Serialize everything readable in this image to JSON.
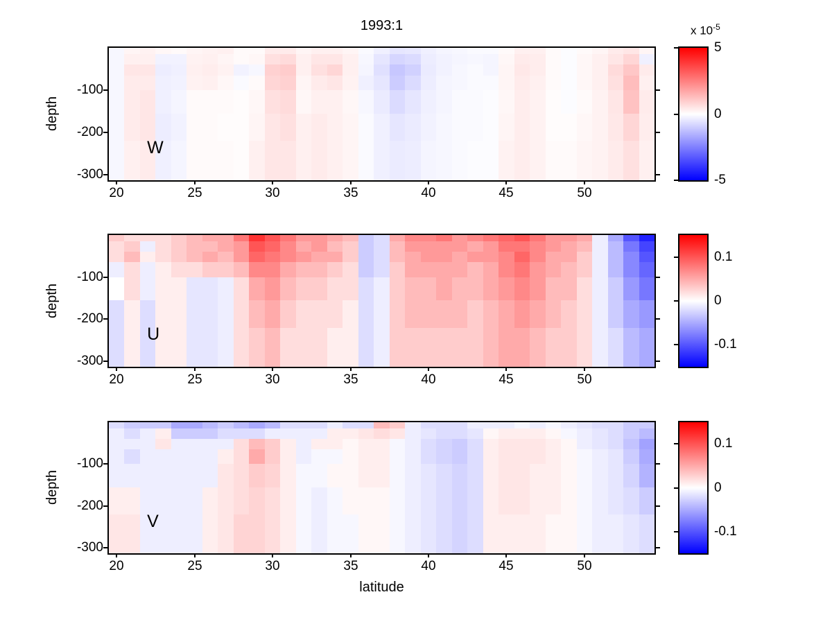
{
  "figure": {
    "title": "1993:1",
    "xlabel": "latitude",
    "ylabel": "depth",
    "background": "#ffffff"
  },
  "colors": {
    "max_positive": "#ff0000",
    "zero": "#ffffff",
    "max_negative": "#0000ff",
    "axis": "#000000",
    "text": "#000000"
  },
  "chart_data": [
    {
      "type": "heatmap",
      "panel_label": "W",
      "x_ticks": [
        20,
        25,
        30,
        35,
        40,
        45,
        50
      ],
      "y_ticks": [
        -100,
        -200,
        -300
      ],
      "lat_range": [
        19.5,
        54.5
      ],
      "depth_edges": [
        0,
        15,
        40,
        65,
        100,
        155,
        220,
        313
      ],
      "clim": [
        -5,
        5
      ],
      "value_units": "1e-5",
      "colorbar_exponent": {
        "base": "x 10",
        "power": "-5"
      },
      "colorbar_ticks": [
        {
          "label": "5",
          "value": 5
        },
        {
          "label": "0",
          "value": 0
        },
        {
          "label": "-5",
          "value": -5
        }
      ],
      "values": [
        [
          -0.15,
          0.2,
          0.25,
          0.15,
          0.1,
          0.2,
          0.25,
          0.3,
          0.1,
          0.1,
          0.4,
          0.4,
          0.2,
          0.3,
          0.3,
          0.2,
          -0.1,
          -0.3,
          -0.5,
          -0.45,
          -0.3,
          -0.2,
          -0.15,
          -0.1,
          -0.1,
          0.1,
          0.3,
          0.3,
          0.1,
          -0.05,
          0.1,
          0.2,
          0.4,
          0.5,
          0.2
        ],
        [
          -0.15,
          0.3,
          0.3,
          -0.25,
          -0.25,
          0.25,
          0.3,
          0.2,
          0.1,
          0.15,
          0.6,
          0.7,
          0.3,
          0.5,
          0.5,
          0.3,
          -0.15,
          -0.5,
          -0.8,
          -0.7,
          -0.35,
          -0.25,
          -0.2,
          -0.15,
          -0.2,
          0.15,
          0.4,
          0.35,
          0.1,
          -0.05,
          0.15,
          0.3,
          0.5,
          0.8,
          -0.3
        ],
        [
          -0.15,
          0.5,
          0.5,
          -0.35,
          -0.3,
          0.3,
          0.35,
          0.25,
          -0.25,
          -0.15,
          0.9,
          1.0,
          0.3,
          0.6,
          0.8,
          0.3,
          -0.2,
          -0.6,
          -1.1,
          -0.9,
          -0.4,
          -0.25,
          -0.15,
          -0.1,
          -0.2,
          0.2,
          0.45,
          0.35,
          0.1,
          -0.05,
          0.15,
          0.3,
          0.7,
          1.1,
          0.4
        ],
        [
          -0.15,
          0.4,
          0.4,
          -0.3,
          -0.25,
          0.25,
          0.3,
          0.15,
          -0.1,
          0.1,
          0.8,
          0.9,
          0.2,
          0.4,
          0.5,
          0.25,
          -0.3,
          -0.5,
          -1.0,
          -0.7,
          -0.35,
          -0.2,
          -0.15,
          -0.1,
          -0.1,
          0.2,
          0.4,
          0.3,
          0.1,
          -0.05,
          0.15,
          0.3,
          0.6,
          1.3,
          0.3
        ],
        [
          -0.15,
          0.4,
          0.5,
          -0.3,
          -0.2,
          0.1,
          0.1,
          0.1,
          0.05,
          0.15,
          0.6,
          0.7,
          0.15,
          0.3,
          0.3,
          0.15,
          -0.15,
          -0.4,
          -0.7,
          -0.5,
          -0.3,
          -0.2,
          -0.1,
          -0.1,
          -0.05,
          0.15,
          0.35,
          0.25,
          0.05,
          -0.05,
          0.1,
          0.25,
          0.5,
          1.2,
          0.4
        ],
        [
          -0.15,
          0.4,
          0.5,
          -0.35,
          -0.25,
          0.1,
          0.1,
          0.05,
          0.05,
          0.2,
          0.5,
          0.6,
          0.3,
          0.4,
          0.3,
          0.2,
          -0.1,
          -0.3,
          -0.5,
          -0.4,
          -0.25,
          -0.15,
          -0.1,
          -0.1,
          -0.05,
          0.2,
          0.35,
          0.25,
          0.05,
          0.05,
          0.15,
          0.25,
          0.45,
          0.8,
          0.35
        ],
        [
          -0.15,
          0.3,
          0.4,
          -0.3,
          -0.2,
          0.1,
          0.1,
          0.1,
          0.05,
          0.3,
          0.5,
          0.5,
          0.3,
          0.4,
          0.3,
          0.2,
          -0.1,
          -0.3,
          -0.4,
          -0.35,
          -0.2,
          -0.15,
          -0.1,
          -0.05,
          -0.05,
          0.25,
          0.35,
          0.25,
          0.1,
          0.1,
          0.2,
          0.25,
          0.4,
          0.6,
          0.3
        ]
      ]
    },
    {
      "type": "heatmap",
      "panel_label": "U",
      "x_ticks": [
        20,
        25,
        30,
        35,
        40,
        45,
        50
      ],
      "y_ticks": [
        -100,
        -200,
        -300
      ],
      "lat_range": [
        19.5,
        54.5
      ],
      "depth_edges": [
        0,
        15,
        40,
        65,
        100,
        155,
        220,
        313
      ],
      "clim": [
        -0.15,
        0.15
      ],
      "value_units": "1",
      "colorbar_ticks": [
        {
          "label": "0.1",
          "value": 0.1
        },
        {
          "label": "0",
          "value": 0
        },
        {
          "label": "-0.1",
          "value": -0.1
        }
      ],
      "values": [
        [
          0.03,
          0.02,
          0.02,
          0.02,
          0.03,
          0.04,
          0.05,
          0.05,
          0.08,
          0.12,
          0.1,
          0.08,
          0.06,
          0.06,
          0.05,
          0.04,
          -0.03,
          -0.02,
          0.05,
          0.07,
          0.07,
          0.08,
          0.06,
          0.07,
          0.08,
          0.09,
          0.1,
          0.08,
          0.06,
          0.06,
          0.05,
          -0.01,
          -0.05,
          -0.1,
          -0.13
        ],
        [
          0.02,
          0.03,
          -0.01,
          0.02,
          0.03,
          0.04,
          0.04,
          0.05,
          0.06,
          0.1,
          0.09,
          0.07,
          0.05,
          0.06,
          0.04,
          0.03,
          -0.03,
          -0.02,
          0.04,
          0.06,
          0.06,
          0.06,
          0.06,
          0.05,
          0.06,
          0.08,
          0.08,
          0.07,
          0.06,
          0.05,
          0.04,
          -0.01,
          -0.04,
          -0.08,
          -0.11
        ],
        [
          0.02,
          0.04,
          0.01,
          0.02,
          0.03,
          0.04,
          0.05,
          0.04,
          0.06,
          0.09,
          0.08,
          0.07,
          0.06,
          0.05,
          0.05,
          0.03,
          -0.03,
          -0.02,
          0.04,
          0.05,
          0.06,
          0.06,
          0.05,
          0.06,
          0.06,
          0.07,
          0.09,
          0.07,
          0.05,
          0.05,
          0.03,
          -0.01,
          -0.04,
          -0.07,
          -0.1
        ],
        [
          -0.01,
          0.02,
          -0.01,
          0.01,
          0.02,
          0.02,
          0.03,
          0.03,
          0.04,
          0.07,
          0.07,
          0.05,
          0.04,
          0.04,
          0.03,
          0.02,
          -0.03,
          -0.02,
          0.03,
          0.05,
          0.05,
          0.05,
          0.05,
          0.04,
          0.05,
          0.07,
          0.08,
          0.06,
          0.05,
          0.04,
          0.03,
          -0.01,
          -0.04,
          -0.07,
          -0.09
        ],
        [
          0.0,
          0.02,
          -0.01,
          0.01,
          0.01,
          -0.015,
          -0.015,
          -0.01,
          0.02,
          0.05,
          0.06,
          0.04,
          0.03,
          0.03,
          0.02,
          0.02,
          -0.02,
          -0.01,
          0.03,
          0.04,
          0.04,
          0.05,
          0.04,
          0.04,
          0.05,
          0.06,
          0.07,
          0.06,
          0.04,
          0.04,
          0.02,
          -0.01,
          -0.03,
          -0.06,
          -0.08
        ],
        [
          -0.02,
          0.01,
          -0.02,
          0.01,
          0.01,
          -0.015,
          -0.015,
          -0.01,
          0.02,
          0.04,
          0.05,
          0.03,
          0.02,
          0.02,
          0.02,
          0.01,
          -0.02,
          -0.01,
          0.03,
          0.04,
          0.04,
          0.04,
          0.04,
          0.03,
          0.04,
          0.05,
          0.06,
          0.05,
          0.04,
          0.03,
          0.02,
          -0.01,
          -0.03,
          -0.05,
          -0.06
        ],
        [
          -0.02,
          0.01,
          -0.02,
          0.01,
          0.01,
          -0.015,
          -0.015,
          -0.01,
          0.02,
          0.03,
          0.04,
          0.02,
          0.02,
          0.02,
          0.01,
          0.01,
          -0.02,
          -0.01,
          0.03,
          0.03,
          0.03,
          0.03,
          0.03,
          0.03,
          0.04,
          0.05,
          0.05,
          0.04,
          0.03,
          0.03,
          0.02,
          -0.01,
          -0.02,
          -0.04,
          -0.05
        ]
      ]
    },
    {
      "type": "heatmap",
      "panel_label": "V",
      "x_ticks": [
        20,
        25,
        30,
        35,
        40,
        45,
        50
      ],
      "y_ticks": [
        -100,
        -200,
        -300
      ],
      "lat_range": [
        19.5,
        54.5
      ],
      "depth_edges": [
        0,
        15,
        40,
        65,
        100,
        155,
        220,
        313
      ],
      "clim": [
        -0.15,
        0.15
      ],
      "value_units": "1",
      "colorbar_ticks": [
        {
          "label": "0.1",
          "value": 0.1
        },
        {
          "label": "0",
          "value": 0
        },
        {
          "label": "-0.1",
          "value": -0.1
        }
      ],
      "values": [
        [
          -0.02,
          -0.03,
          -0.03,
          -0.03,
          -0.05,
          -0.05,
          -0.04,
          -0.03,
          -0.04,
          -0.05,
          -0.04,
          -0.02,
          -0.02,
          -0.02,
          -0.01,
          -0.02,
          -0.02,
          0.04,
          0.03,
          -0.01,
          -0.02,
          -0.02,
          -0.02,
          -0.01,
          -0.01,
          -0.01,
          -0.005,
          -0.01,
          -0.005,
          -0.01,
          -0.015,
          -0.02,
          -0.02,
          -0.03,
          -0.03
        ],
        [
          -0.01,
          -0.02,
          -0.01,
          0.01,
          -0.03,
          -0.03,
          -0.03,
          -0.02,
          -0.02,
          -0.02,
          -0.01,
          -0.01,
          -0.01,
          -0.01,
          0.01,
          0.01,
          0.015,
          0.02,
          0.015,
          -0.01,
          -0.015,
          -0.02,
          -0.02,
          -0.015,
          0.005,
          0.01,
          0.01,
          0.01,
          0.005,
          -0.005,
          -0.01,
          -0.015,
          -0.02,
          -0.03,
          -0.04
        ],
        [
          -0.01,
          -0.01,
          -0.01,
          0.015,
          -0.01,
          -0.01,
          -0.01,
          -0.01,
          0.02,
          0.04,
          0.03,
          0.01,
          -0.01,
          0.01,
          0.01,
          0.005,
          0.01,
          0.01,
          -0.005,
          -0.01,
          -0.02,
          -0.025,
          -0.03,
          -0.02,
          0.01,
          0.015,
          0.015,
          0.015,
          0.01,
          0.005,
          -0.01,
          -0.015,
          -0.02,
          -0.035,
          -0.055
        ],
        [
          -0.01,
          -0.02,
          -0.01,
          -0.01,
          -0.01,
          -0.01,
          -0.01,
          0.01,
          0.02,
          0.05,
          0.03,
          0.01,
          -0.01,
          -0.005,
          -0.005,
          0.005,
          0.01,
          0.01,
          -0.005,
          -0.01,
          -0.02,
          -0.025,
          -0.03,
          -0.02,
          0.01,
          0.015,
          0.015,
          0.015,
          0.01,
          0.005,
          -0.005,
          -0.01,
          -0.015,
          -0.03,
          -0.05
        ],
        [
          -0.01,
          -0.01,
          -0.01,
          -0.01,
          -0.01,
          -0.01,
          -0.01,
          0.015,
          0.02,
          0.03,
          0.025,
          0.01,
          -0.005,
          -0.005,
          0.005,
          0.005,
          0.01,
          0.01,
          -0.005,
          -0.01,
          -0.015,
          -0.02,
          -0.025,
          -0.02,
          0.01,
          0.015,
          0.015,
          0.01,
          0.01,
          0.005,
          -0.005,
          -0.01,
          -0.015,
          -0.025,
          -0.045
        ],
        [
          0.01,
          0.01,
          -0.01,
          -0.01,
          -0.01,
          -0.01,
          0.01,
          0.015,
          0.02,
          0.025,
          0.02,
          0.01,
          -0.005,
          -0.01,
          -0.005,
          0.005,
          0.005,
          0.005,
          -0.005,
          -0.01,
          -0.015,
          -0.02,
          -0.025,
          -0.02,
          0.01,
          0.015,
          0.015,
          0.01,
          0.01,
          0.005,
          -0.005,
          -0.01,
          -0.015,
          -0.02,
          -0.03
        ],
        [
          0.015,
          0.015,
          -0.01,
          -0.01,
          -0.01,
          -0.01,
          0.01,
          0.015,
          0.025,
          0.025,
          0.02,
          0.01,
          -0.005,
          -0.01,
          -0.005,
          -0.005,
          0.005,
          0.005,
          -0.005,
          -0.01,
          -0.015,
          -0.02,
          -0.025,
          -0.02,
          0.01,
          0.01,
          0.01,
          0.01,
          0.005,
          0.005,
          -0.005,
          -0.01,
          -0.01,
          -0.015,
          -0.02
        ]
      ]
    }
  ],
  "layout_text": {
    "panel_tops": [
      67,
      337,
      607
    ],
    "panel_heights": [
      195,
      194,
      193
    ]
  }
}
